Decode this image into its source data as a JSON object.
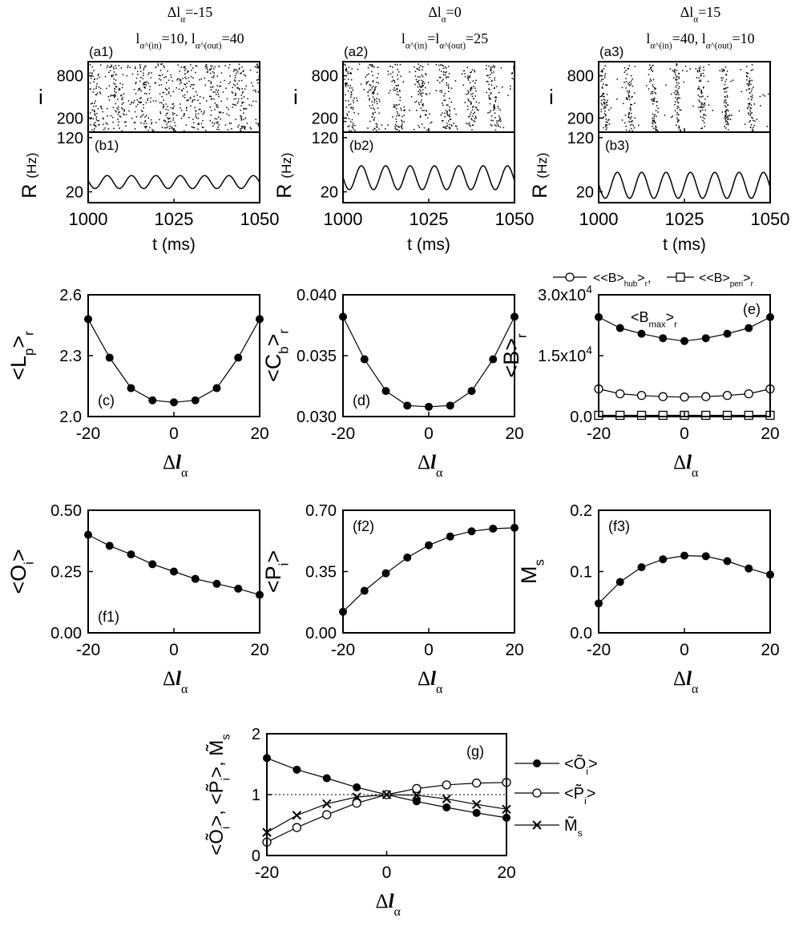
{
  "chart_data": [
    {
      "id": "a1",
      "type": "raster",
      "panel_label": "(a1)",
      "header": [
        "Δl_α=-15",
        "l_α^(in)=10, l_α^(out)=40"
      ],
      "ylabel": "i",
      "yticks": [
        "800",
        "200"
      ],
      "x_range": [
        1000,
        1050
      ],
      "y_range": [
        0,
        1000
      ],
      "band_period_ms": 7.1
    },
    {
      "id": "a2",
      "type": "raster",
      "panel_label": "(a2)",
      "header": [
        "Δl_α=0",
        "l_α^(in)=l_α^(out)=25"
      ],
      "ylabel": "i",
      "yticks": [
        "800",
        "200"
      ],
      "x_range": [
        1000,
        1050
      ],
      "y_range": [
        0,
        1000
      ],
      "band_period_ms": 7.1
    },
    {
      "id": "a3",
      "type": "raster",
      "panel_label": "(a3)",
      "header": [
        "Δl_α=15",
        "l_α^(in)=40, l_α^(out)=10"
      ],
      "ylabel": "i",
      "yticks": [
        "800",
        "200"
      ],
      "x_range": [
        1000,
        1050
      ],
      "y_range": [
        0,
        1000
      ],
      "band_period_ms": 7.1
    },
    {
      "id": "b1",
      "type": "line",
      "panel_label": "(b1)",
      "xlabel": "t (ms)",
      "ylabel": "R (Hz)",
      "xticks": [
        "1000",
        "1025",
        "1050"
      ],
      "yticks": [
        "120",
        "20"
      ],
      "xlim": [
        1000,
        1050
      ],
      "ylim": [
        0,
        130
      ],
      "signal": {
        "mean": 38,
        "amplitude": 12,
        "period_ms": 7.1,
        "phase_ms": 1002
      }
    },
    {
      "id": "b2",
      "type": "line",
      "panel_label": "(b2)",
      "xlabel": "t (ms)",
      "ylabel": "R (Hz)",
      "xticks": [
        "1000",
        "1025",
        "1050"
      ],
      "yticks": [
        "120",
        "20"
      ],
      "xlim": [
        1000,
        1050
      ],
      "ylim": [
        0,
        130
      ],
      "signal": {
        "mean": 46,
        "amplitude": 22,
        "period_ms": 7.1,
        "phase_ms": 1001.8
      }
    },
    {
      "id": "b3",
      "type": "line",
      "panel_label": "(b3)",
      "xlabel": "t (ms)",
      "ylabel": "R (Hz)",
      "xticks": [
        "1000",
        "1025",
        "1050"
      ],
      "yticks": [
        "120",
        "20"
      ],
      "xlim": [
        1000,
        1050
      ],
      "ylim": [
        0,
        130
      ],
      "signal": {
        "mean": 32,
        "amplitude": 24,
        "period_ms": 7.1,
        "phase_ms": 1001.9
      }
    },
    {
      "id": "c",
      "type": "line",
      "panel_label": "(c)",
      "xlabel": "Δl_α",
      "ylabel": "<L_p>_r",
      "xlim": [
        -20,
        20
      ],
      "ylim": [
        2.0,
        2.6
      ],
      "xticks": [
        "-20",
        "0",
        "20"
      ],
      "ytick_values": [
        2.0,
        2.3,
        2.6
      ],
      "yticks": [
        "2.0",
        "2.3",
        "2.6"
      ],
      "x": [
        -20,
        -15,
        -10,
        -5,
        0,
        5,
        10,
        15,
        20
      ],
      "series": [
        {
          "values": [
            2.48,
            2.29,
            2.14,
            2.08,
            2.07,
            2.08,
            2.14,
            2.29,
            2.48
          ],
          "marker": "filled-circle"
        }
      ]
    },
    {
      "id": "d",
      "type": "line",
      "panel_label": "(d)",
      "xlabel": "Δl_α",
      "ylabel": "<C_b>_r",
      "xlim": [
        -20,
        20
      ],
      "ylim": [
        0.03,
        0.04
      ],
      "xticks": [
        "-20",
        "0",
        "20"
      ],
      "ytick_values": [
        0.03,
        0.035,
        0.04
      ],
      "yticks": [
        "0.030",
        "0.035",
        "0.040"
      ],
      "x": [
        -20,
        -15,
        -10,
        -5,
        0,
        5,
        10,
        15,
        20
      ],
      "series": [
        {
          "values": [
            0.0382,
            0.0347,
            0.0321,
            0.0309,
            0.0308,
            0.0309,
            0.0321,
            0.0347,
            0.0382
          ],
          "marker": "filled-circle"
        }
      ]
    },
    {
      "id": "e",
      "type": "line",
      "panel_label": "(e)",
      "xlabel": "Δl_α",
      "ylabel": "<B>_r",
      "xlim": [
        -20,
        20
      ],
      "ylim": [
        0,
        30000
      ],
      "xticks": [
        "-20",
        "0",
        "20"
      ],
      "ytick_values": [
        0,
        15000,
        30000
      ],
      "yticks": [
        "0.0",
        "1.5x10⁴",
        "3.0x10⁴"
      ],
      "legend_position": "top",
      "annotation": "<B_max>_r",
      "x": [
        -20,
        -15,
        -10,
        -5,
        0,
        5,
        10,
        15,
        20
      ],
      "series": [
        {
          "name": "<B_max>_r",
          "values": [
            24500,
            21800,
            20400,
            19300,
            18600,
            19300,
            20400,
            21800,
            24500
          ],
          "marker": "filled-circle"
        },
        {
          "name": "<<B>_hub>_r",
          "values": [
            6800,
            5600,
            5200,
            4900,
            4800,
            4900,
            5200,
            5600,
            6800
          ],
          "marker": "open-circle"
        },
        {
          "name": "<<B>_peri>_r",
          "values": [
            300,
            300,
            300,
            300,
            300,
            300,
            300,
            300,
            300
          ],
          "marker": "open-square"
        }
      ]
    },
    {
      "id": "f1",
      "type": "line",
      "panel_label": "(f1)",
      "xlabel": "Δl_α",
      "ylabel": "<O_i>",
      "xlim": [
        -20,
        20
      ],
      "ylim": [
        0,
        0.5
      ],
      "xticks": [
        "-20",
        "0",
        "20"
      ],
      "ytick_values": [
        0,
        0.25,
        0.5
      ],
      "yticks": [
        "0.00",
        "0.25",
        "0.50"
      ],
      "x": [
        -20,
        -15,
        -10,
        -5,
        0,
        5,
        10,
        15,
        20
      ],
      "series": [
        {
          "values": [
            0.4,
            0.355,
            0.32,
            0.28,
            0.25,
            0.22,
            0.2,
            0.18,
            0.155
          ],
          "marker": "filled-circle"
        }
      ]
    },
    {
      "id": "f2",
      "type": "line",
      "panel_label": "(f2)",
      "xlabel": "Δl_α",
      "ylabel": "<P_i>",
      "xlim": [
        -20,
        20
      ],
      "ylim": [
        0,
        0.7
      ],
      "xticks": [
        "-20",
        "0",
        "20"
      ],
      "ytick_values": [
        0,
        0.35,
        0.7
      ],
      "yticks": [
        "0.00",
        "0.35",
        "0.70"
      ],
      "x": [
        -20,
        -15,
        -10,
        -5,
        0,
        5,
        10,
        15,
        20
      ],
      "series": [
        {
          "values": [
            0.12,
            0.24,
            0.34,
            0.43,
            0.5,
            0.55,
            0.58,
            0.595,
            0.6
          ],
          "marker": "filled-circle"
        }
      ]
    },
    {
      "id": "f3",
      "type": "line",
      "panel_label": "(f3)",
      "xlabel": "Δl_α",
      "ylabel": "M_s",
      "xlim": [
        -20,
        20
      ],
      "ylim": [
        0,
        0.2
      ],
      "xticks": [
        "-20",
        "0",
        "20"
      ],
      "ytick_values": [
        0,
        0.1,
        0.2
      ],
      "yticks": [
        "0.0",
        "0.1",
        "0.2"
      ],
      "x": [
        -20,
        -15,
        -10,
        -5,
        0,
        5,
        10,
        15,
        20
      ],
      "series": [
        {
          "values": [
            0.048,
            0.083,
            0.107,
            0.12,
            0.126,
            0.125,
            0.117,
            0.105,
            0.095
          ],
          "marker": "filled-circle"
        }
      ]
    },
    {
      "id": "g",
      "type": "line",
      "panel_label": "(g)",
      "xlabel": "Δl_α",
      "ylabel": "<Õ_i>, <P̃_i>, M̃_s",
      "xlim": [
        -20,
        20
      ],
      "ylim": [
        0,
        2
      ],
      "xticks": [
        "-20",
        "0",
        "20"
      ],
      "ytick_values": [
        0,
        1,
        2
      ],
      "yticks": [
        "0",
        "1",
        "2"
      ],
      "reference_line": 1,
      "legend_position": "right",
      "x": [
        -20,
        -15,
        -10,
        -5,
        0,
        5,
        10,
        15,
        20
      ],
      "series": [
        {
          "name": "<Õ_i>",
          "values": [
            1.6,
            1.41,
            1.27,
            1.12,
            1.0,
            0.89,
            0.79,
            0.7,
            0.62
          ],
          "marker": "filled-circle"
        },
        {
          "name": "<P̃_i>",
          "values": [
            0.22,
            0.46,
            0.67,
            0.86,
            1.0,
            1.1,
            1.16,
            1.19,
            1.2
          ],
          "marker": "open-circle"
        },
        {
          "name": "M̃_s",
          "values": [
            0.38,
            0.66,
            0.85,
            0.96,
            1.0,
            0.99,
            0.93,
            0.84,
            0.76
          ],
          "marker": "x"
        }
      ]
    }
  ]
}
